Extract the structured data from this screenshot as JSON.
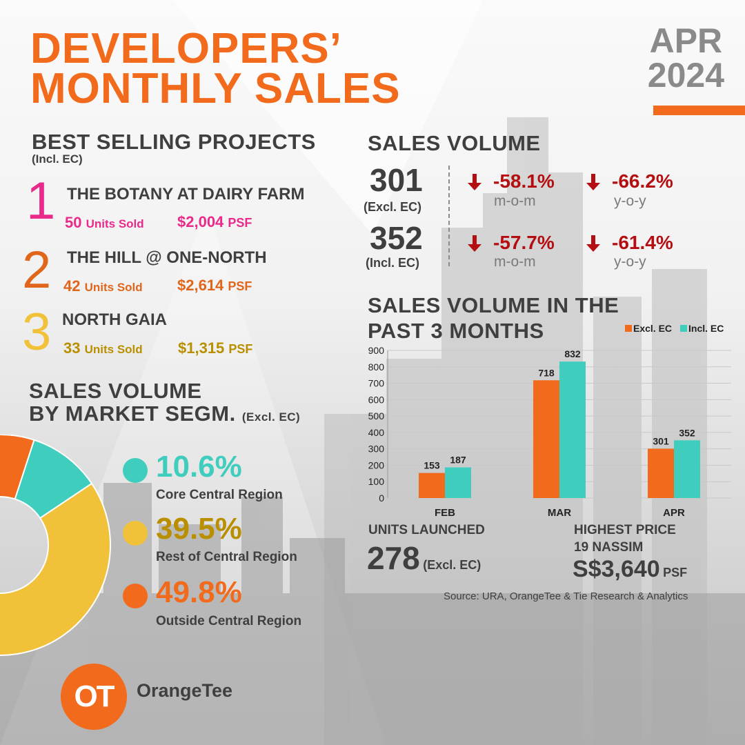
{
  "header": {
    "title_line1": "DEVELOPERS’",
    "title_line2": "MONTHLY SALES",
    "month": "APR",
    "year": "2024"
  },
  "colors": {
    "orange": "#f26a1b",
    "pink": "#ea2a8a",
    "dark_orange": "#e0661b",
    "gold": "#b98f00",
    "gold_light": "#f2c13a",
    "teal": "#3fcdbd",
    "red": "#b50e12",
    "grey_text": "#3f3f3f"
  },
  "best_selling": {
    "heading": "BEST SELLING PROJECTS",
    "subheading": "(Incl. EC)",
    "items": [
      {
        "rank": "1",
        "name": "THE BOTANY AT DAIRY FARM",
        "units": "50",
        "units_label": "Units Sold",
        "price": "$2,004",
        "price_unit": "PSF"
      },
      {
        "rank": "2",
        "name": "THE HILL @ ONE-NORTH",
        "units": "42",
        "units_label": "Units Sold",
        "price": "$2,614",
        "price_unit": "PSF"
      },
      {
        "rank": "3",
        "name": "NORTH GAIA",
        "units": "33",
        "units_label": "Units Sold",
        "price": "$1,315",
        "price_unit": "PSF"
      }
    ]
  },
  "sales_volume": {
    "heading": "SALES VOLUME",
    "rows": [
      {
        "value": "301",
        "label": "(Excl. EC)",
        "mom": "-58.1%",
        "mom_label": "m-o-m",
        "yoy": "-66.2%",
        "yoy_label": "y-o-y"
      },
      {
        "value": "352",
        "label": "(Incl. EC)",
        "mom": "-57.7%",
        "mom_label": "m-o-m",
        "yoy": "-61.4%",
        "yoy_label": "y-o-y"
      }
    ]
  },
  "market_segment": {
    "heading_line1": "SALES VOLUME",
    "heading_line2": "BY MARKET SEGM.",
    "note": "(Excl. EC)",
    "segments": [
      {
        "pct": "10.6%",
        "value": 10.6,
        "label": "Core Central Region",
        "color": "#3fcdbd",
        "pct_color": "#3fcdbd"
      },
      {
        "pct": "39.5%",
        "value": 39.5,
        "label": "Rest of Central Region",
        "color": "#f2c13a",
        "pct_color": "#b98f00"
      },
      {
        "pct": "49.8%",
        "value": 49.8,
        "label": "Outside Central Region",
        "color": "#f26a1b",
        "pct_color": "#f26a1b"
      }
    ]
  },
  "chart_data": {
    "type": "bar",
    "title": "SALES VOLUME IN THE PAST 3 MONTHS",
    "categories": [
      "FEB",
      "MAR",
      "APR"
    ],
    "series": [
      {
        "name": "Excl. EC",
        "values": [
          153,
          718,
          301
        ],
        "color": "#f26a1b"
      },
      {
        "name": "Incl. EC",
        "values": [
          187,
          832,
          352
        ],
        "color": "#3fcdbd"
      }
    ],
    "ylim": [
      0,
      900
    ],
    "yticks": [
      "0",
      "100",
      "200",
      "300",
      "400",
      "500",
      "600",
      "700",
      "800",
      "900"
    ],
    "grid": true,
    "legend": "top-right"
  },
  "chart_title": {
    "line1": "SALES VOLUME IN THE",
    "line2": "PAST 3 MONTHS"
  },
  "units_launched": {
    "heading": "UNITS LAUNCHED",
    "value": "278",
    "note": "(Excl. EC)"
  },
  "highest_price": {
    "heading": "HIGHEST PRICE",
    "project": "19 NASSIM",
    "value": "S$3,640",
    "unit": "PSF"
  },
  "source": "Source: URA, OrangeTee & Tie Research & Analytics",
  "brand": {
    "logo_letters": "OT",
    "name": "OrangeTee"
  }
}
